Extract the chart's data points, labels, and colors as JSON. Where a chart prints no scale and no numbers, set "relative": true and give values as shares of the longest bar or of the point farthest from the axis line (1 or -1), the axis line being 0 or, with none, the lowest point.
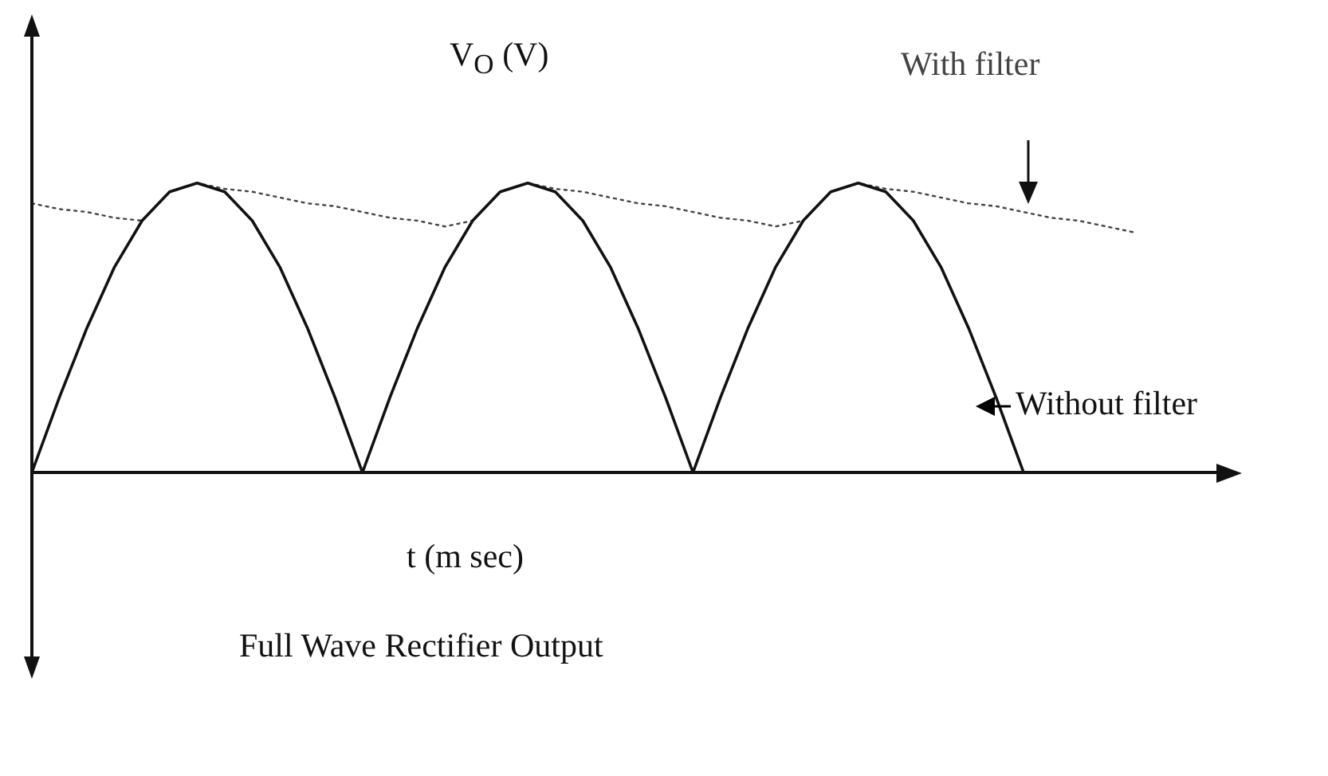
{
  "chart_data": {
    "type": "line",
    "title": "Full Wave Rectifier Output",
    "xlabel": "t (m sec)",
    "ylabel": "V$_{O}$ (V)",
    "relative": true,
    "legend": false,
    "marker": "none",
    "grid": false,
    "categories": [
      null,
      null,
      null,
      null,
      null,
      null,
      null,
      null,
      null,
      null,
      null,
      null,
      null,
      null,
      null,
      null,
      null,
      null,
      null,
      null,
      null,
      null,
      null,
      null,
      null,
      null,
      null,
      null,
      null,
      null,
      null,
      null,
      null,
      null,
      null,
      null,
      null,
      null,
      null,
      null,
      null,
      null,
      null,
      null
    ],
    "series": [
      {
        "name": "Without filter",
        "color": "#111111",
        "line_style": "solid",
        "values": [
          0,
          0.26,
          0.5,
          0.71,
          0.87,
          0.97,
          1,
          0.97,
          0.87,
          0.71,
          0.5,
          0.26,
          0,
          0.26,
          0.5,
          0.71,
          0.87,
          0.97,
          1,
          0.97,
          0.87,
          0.71,
          0.5,
          0.26,
          0,
          0.26,
          0.5,
          0.71,
          0.87,
          0.97,
          1,
          0.97,
          0.87,
          0.71,
          0.5,
          0.26,
          0,
          null,
          null,
          null,
          null,
          null,
          null,
          null
        ]
      },
      {
        "name": "With filter",
        "color": "#444444",
        "line_style": "dotted",
        "values": [
          0.93,
          0.91,
          0.9,
          0.88,
          0.87,
          0.97,
          1,
          0.98,
          0.97,
          0.95,
          0.93,
          0.92,
          0.9,
          0.88,
          0.87,
          0.85,
          0.87,
          0.97,
          1,
          0.98,
          0.97,
          0.95,
          0.93,
          0.92,
          0.9,
          0.88,
          0.87,
          0.85,
          0.87,
          0.97,
          1,
          0.98,
          0.97,
          0.95,
          0.93,
          0.92,
          0.9,
          0.88,
          0.87,
          0.85,
          0.83,
          null,
          null,
          null
        ]
      }
    ]
  }
}
